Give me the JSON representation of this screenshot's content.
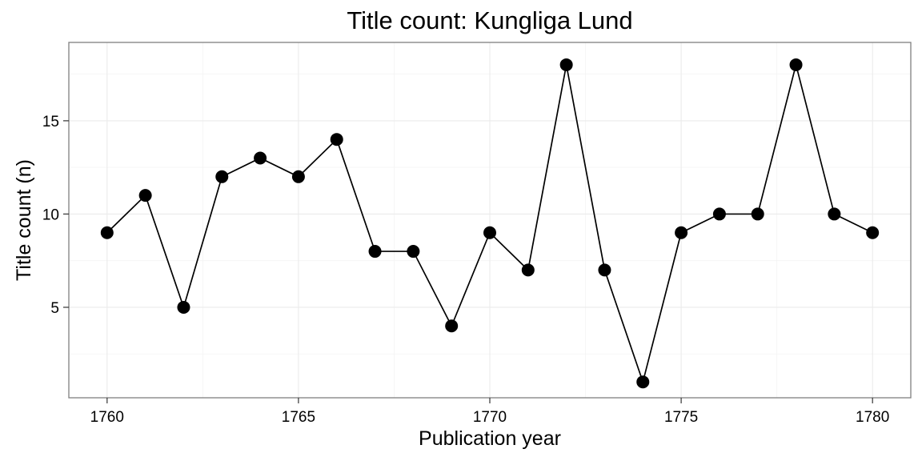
{
  "chart_data": {
    "type": "line",
    "title": "Title count: Kungliga Lund",
    "xlabel": "Publication year",
    "ylabel": "Title count (n)",
    "x": [
      1760,
      1761,
      1762,
      1763,
      1764,
      1765,
      1766,
      1767,
      1768,
      1769,
      1770,
      1771,
      1772,
      1773,
      1774,
      1775,
      1776,
      1777,
      1778,
      1779,
      1780
    ],
    "series": [
      {
        "values": [
          9,
          11,
          5,
          12,
          13,
          12,
          14,
          8,
          8,
          4,
          9,
          7,
          18,
          7,
          1,
          9,
          10,
          10,
          18,
          10,
          9
        ]
      }
    ],
    "xlim": [
      1759,
      1781
    ],
    "ylim": [
      0.15,
      19.2
    ],
    "x_ticks": [
      1760,
      1765,
      1770,
      1775,
      1780
    ],
    "y_ticks": [
      5,
      10,
      15
    ],
    "x_tick_labels": [
      "1760",
      "1765",
      "1770",
      "1775",
      "1780"
    ],
    "y_tick_labels": [
      "5",
      "10",
      "15"
    ],
    "grid": true,
    "markers": true,
    "colors": {
      "line": "#000000",
      "points": "#000000",
      "panel_border": "#7f7f7f",
      "grid": "#ebebeb"
    }
  }
}
